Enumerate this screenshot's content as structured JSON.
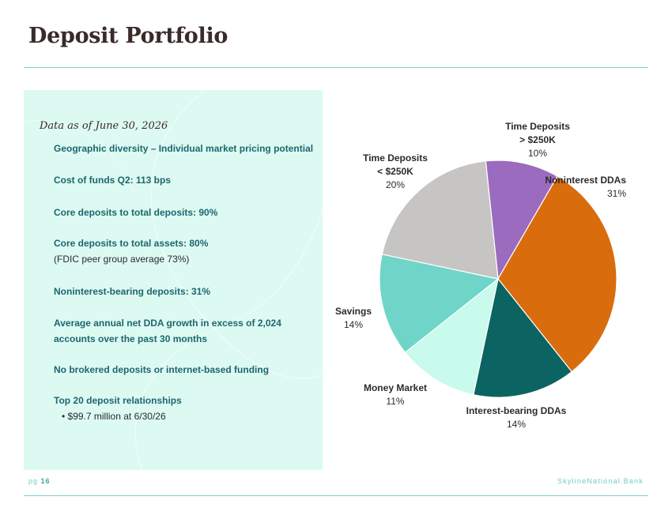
{
  "slide": {
    "title": "Deposit Portfolio",
    "date_note": "Data as of June 30, 2026",
    "page_prefix": "pg",
    "page_number": "16",
    "brand": "SkylineNational.Bank"
  },
  "highlights": [
    {
      "text": "Geographic diversity – Individual market pricing potential"
    },
    {
      "text": "Cost of funds Q2: 113 bps"
    },
    {
      "text": "Core deposits to total deposits: 90%"
    },
    {
      "text": "Core deposits to total assets: 80%",
      "note": "(FDIC peer group average 73%)"
    },
    {
      "text": "Noninterest-bearing deposits:  31%"
    },
    {
      "text": "Average annual net DDA growth in excess of 2,024",
      "text2": "accounts over the past 30 months"
    },
    {
      "text": "No brokered deposits or internet-based funding"
    },
    {
      "text": "Top 20 deposit relationships",
      "note": "• $99.7  million at 6/30/26"
    }
  ],
  "colors": {
    "accent": "#7fd3c8",
    "panel_bg": "#dcfaf1",
    "heading": "#3a2a2a",
    "bullet_text": "#1d6670"
  },
  "chart_data": {
    "type": "pie",
    "title": "",
    "start_angle_deg": -6,
    "slices": [
      {
        "label_lines": [
          "Time Deposits",
          "> $250K"
        ],
        "value": 10,
        "value_label": "10%",
        "color": "#9b6bbf"
      },
      {
        "label_lines": [
          "Noninterest DDAs"
        ],
        "value": 31,
        "value_label": "31%",
        "color": "#d96c0d"
      },
      {
        "label_lines": [
          "Interest-bearing DDAs"
        ],
        "value": 14,
        "value_label": "14%",
        "color": "#0b6462"
      },
      {
        "label_lines": [
          "Money Market"
        ],
        "value": 11,
        "value_label": "11%",
        "color": "#c8fbec"
      },
      {
        "label_lines": [
          "Savings"
        ],
        "value": 14,
        "value_label": "14%",
        "color": "#6fd5c8"
      },
      {
        "label_lines": [
          "Time Deposits",
          "< $250K"
        ],
        "value": 20,
        "value_label": "20%",
        "color": "#c7c5c3"
      }
    ]
  }
}
